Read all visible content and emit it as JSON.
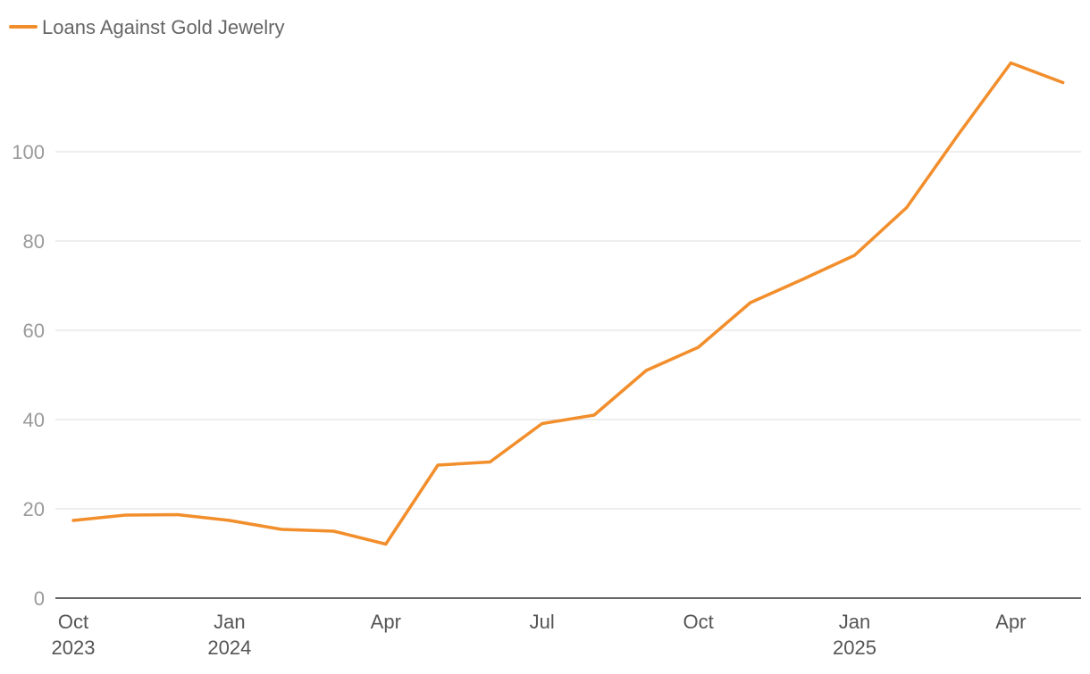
{
  "chart_data": {
    "type": "line",
    "title": "",
    "xlabel": "",
    "ylabel": "",
    "legend_position": "top-left",
    "grid": true,
    "ylim": [
      0,
      120
    ],
    "yticks": [
      "0",
      "20",
      "40",
      "60",
      "80",
      "100"
    ],
    "xticks": [
      {
        "month": "2023-10",
        "lines": [
          "Oct",
          "2023"
        ]
      },
      {
        "month": "2024-01",
        "lines": [
          "Jan",
          "2024"
        ]
      },
      {
        "month": "2024-04",
        "lines": [
          "Apr"
        ]
      },
      {
        "month": "2024-07",
        "lines": [
          "Jul"
        ]
      },
      {
        "month": "2024-10",
        "lines": [
          "Oct"
        ]
      },
      {
        "month": "2025-01",
        "lines": [
          "Jan",
          "2025"
        ]
      },
      {
        "month": "2025-04",
        "lines": [
          "Apr"
        ]
      }
    ],
    "x": [
      "2023-10",
      "2023-11",
      "2023-12",
      "2024-01",
      "2024-02",
      "2024-03",
      "2024-04",
      "2024-05",
      "2024-06",
      "2024-07",
      "2024-08",
      "2024-09",
      "2024-10",
      "2024-11",
      "2024-12",
      "2025-01",
      "2025-02",
      "2025-03",
      "2025-04",
      "2025-05"
    ],
    "series": [
      {
        "name": "Loans Against Gold Jewelry",
        "color": "#f28e2b",
        "values": [
          17.4,
          18.6,
          18.7,
          17.4,
          15.4,
          15.0,
          12.1,
          29.8,
          30.5,
          39.1,
          41.0,
          51.0,
          56.2,
          66.2,
          71.4,
          76.8,
          87.5,
          104.0,
          119.9,
          115.5
        ]
      }
    ]
  }
}
